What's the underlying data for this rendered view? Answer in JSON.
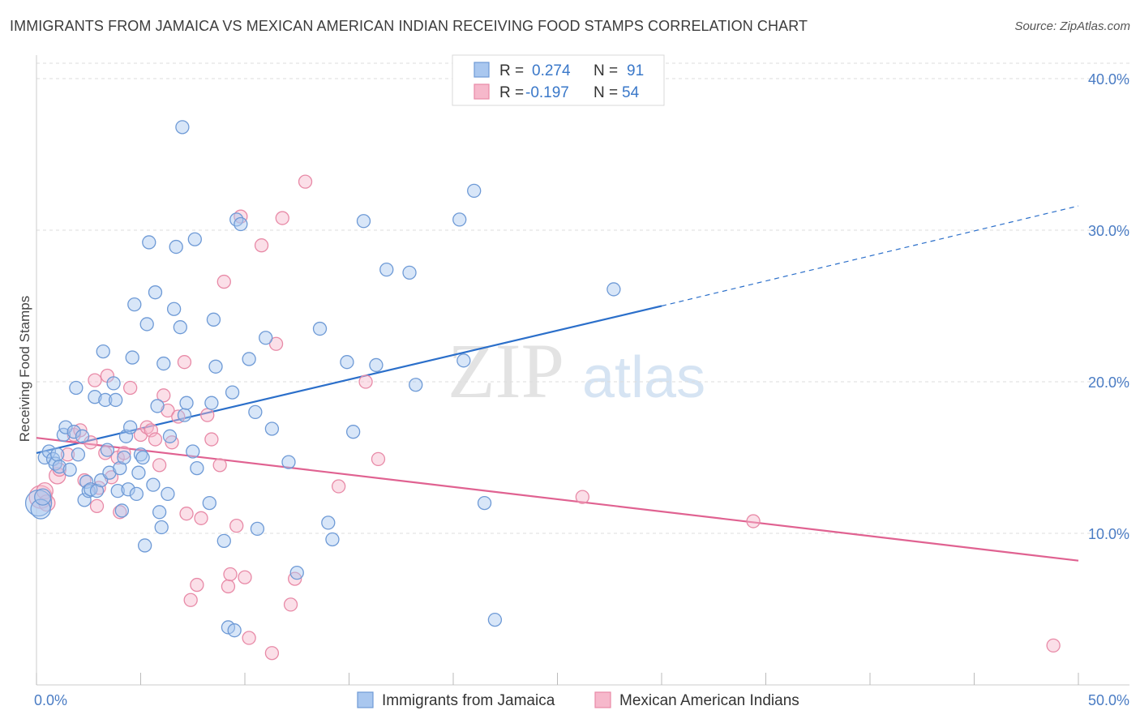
{
  "title": "IMMIGRANTS FROM JAMAICA VS MEXICAN AMERICAN INDIAN RECEIVING FOOD STAMPS CORRELATION CHART",
  "source": "Source: ZipAtlas.com",
  "watermark": {
    "zip": "ZIP",
    "atlas": "atlas"
  },
  "colors": {
    "blue_fill": "#a9c7ef",
    "blue_stroke": "#6e9ad6",
    "blue_line": "#2b6fca",
    "pink_fill": "#f6b8cb",
    "pink_stroke": "#e88aa7",
    "pink_line": "#e06291",
    "axis_label": "#4a7cc4",
    "grid": "#dddddd"
  },
  "legend": {
    "rows": [
      {
        "r_label": "R =",
        "r_value": "0.274",
        "n_label": "N =",
        "n_value": "91",
        "color": "blue"
      },
      {
        "r_label": "R =",
        "r_value": "-0.197",
        "n_label": "N =",
        "n_value": "54",
        "color": "pink"
      }
    ]
  },
  "chart_data": {
    "type": "scatter",
    "xlabel": "",
    "ylabel": "Receiving Food Stamps",
    "xlim": [
      0,
      50
    ],
    "ylim": [
      0,
      40
    ],
    "x_tick_labels": [
      {
        "value": 0,
        "label": "0.0%"
      },
      {
        "value": 50,
        "label": "50.0%"
      }
    ],
    "y_tick_labels": [
      {
        "value": 10,
        "label": "10.0%"
      },
      {
        "value": 20,
        "label": "20.0%"
      },
      {
        "value": 30,
        "label": "30.0%"
      },
      {
        "value": 40,
        "label": "40.0%"
      }
    ],
    "x_minor_ticks": [
      0,
      5,
      10,
      15,
      20,
      25,
      30,
      35,
      40,
      45,
      50
    ],
    "grid": true,
    "legend_placement": "top-center",
    "series": [
      {
        "name": "Immigrants from Jamaica",
        "color": "blue",
        "trend": {
          "x0": 0,
          "y0": 15.3,
          "x1": 30,
          "y1": 25.0,
          "dash_x1": 50,
          "dash_y1": 31.6
        },
        "points": [
          [
            0.1,
            12.0,
            16
          ],
          [
            0.2,
            11.6,
            12
          ],
          [
            0.3,
            12.4,
            10
          ],
          [
            0.4,
            15.0,
            8
          ],
          [
            0.6,
            15.4,
            8
          ],
          [
            0.8,
            14.9,
            8
          ],
          [
            0.9,
            14.6,
            8
          ],
          [
            1.0,
            15.2,
            8
          ],
          [
            1.1,
            14.4,
            8
          ],
          [
            1.3,
            16.5,
            8
          ],
          [
            1.4,
            17.0,
            8
          ],
          [
            1.6,
            14.2,
            8
          ],
          [
            1.8,
            16.7,
            8
          ],
          [
            1.9,
            19.6,
            8
          ],
          [
            2.0,
            15.2,
            8
          ],
          [
            2.2,
            16.4,
            8
          ],
          [
            2.3,
            12.2,
            8
          ],
          [
            2.4,
            13.4,
            8
          ],
          [
            2.5,
            12.8,
            8
          ],
          [
            2.6,
            12.9,
            8
          ],
          [
            2.8,
            19.0,
            8
          ],
          [
            2.9,
            12.8,
            8
          ],
          [
            3.1,
            13.5,
            8
          ],
          [
            3.2,
            22.0,
            8
          ],
          [
            3.3,
            18.8,
            8
          ],
          [
            3.4,
            15.5,
            8
          ],
          [
            3.5,
            14.0,
            8
          ],
          [
            3.7,
            19.9,
            8
          ],
          [
            3.8,
            18.8,
            8
          ],
          [
            3.9,
            12.8,
            8
          ],
          [
            4.0,
            14.3,
            8
          ],
          [
            4.1,
            11.5,
            8
          ],
          [
            4.2,
            15.0,
            8
          ],
          [
            4.3,
            16.4,
            8
          ],
          [
            4.4,
            12.9,
            8
          ],
          [
            4.5,
            17.0,
            8
          ],
          [
            4.6,
            21.6,
            8
          ],
          [
            4.7,
            25.1,
            8
          ],
          [
            4.8,
            12.6,
            8
          ],
          [
            4.9,
            14.0,
            8
          ],
          [
            5.0,
            15.2,
            8
          ],
          [
            5.1,
            15.0,
            8
          ],
          [
            5.2,
            9.2,
            8
          ],
          [
            5.3,
            23.8,
            8
          ],
          [
            5.4,
            29.2,
            8
          ],
          [
            5.6,
            13.2,
            8
          ],
          [
            5.7,
            25.9,
            8
          ],
          [
            5.8,
            18.4,
            8
          ],
          [
            5.9,
            11.4,
            8
          ],
          [
            6.0,
            10.4,
            8
          ],
          [
            6.1,
            21.2,
            8
          ],
          [
            6.3,
            12.6,
            8
          ],
          [
            6.4,
            16.4,
            8
          ],
          [
            6.6,
            24.8,
            8
          ],
          [
            6.7,
            28.9,
            8
          ],
          [
            6.9,
            23.6,
            8
          ],
          [
            7.0,
            36.8,
            8
          ],
          [
            7.1,
            17.8,
            8
          ],
          [
            7.2,
            18.6,
            8
          ],
          [
            7.5,
            15.4,
            8
          ],
          [
            7.6,
            29.4,
            8
          ],
          [
            7.7,
            14.3,
            8
          ],
          [
            8.3,
            12.0,
            8
          ],
          [
            8.4,
            18.6,
            8
          ],
          [
            8.5,
            24.1,
            8
          ],
          [
            8.6,
            21.0,
            8
          ],
          [
            9.0,
            9.5,
            8
          ],
          [
            9.2,
            3.8,
            8
          ],
          [
            9.4,
            19.3,
            8
          ],
          [
            9.5,
            3.6,
            8
          ],
          [
            9.6,
            30.7,
            8
          ],
          [
            9.8,
            30.4,
            8
          ],
          [
            10.2,
            21.5,
            8
          ],
          [
            10.5,
            18.0,
            8
          ],
          [
            10.6,
            10.3,
            8
          ],
          [
            11.0,
            22.9,
            8
          ],
          [
            11.3,
            16.9,
            8
          ],
          [
            12.1,
            14.7,
            8
          ],
          [
            12.5,
            7.4,
            8
          ],
          [
            13.6,
            23.5,
            8
          ],
          [
            14.0,
            10.7,
            8
          ],
          [
            14.2,
            9.6,
            8
          ],
          [
            14.9,
            21.3,
            8
          ],
          [
            15.2,
            16.7,
            8
          ],
          [
            15.7,
            30.6,
            8
          ],
          [
            16.3,
            21.1,
            8
          ],
          [
            16.8,
            27.4,
            8
          ],
          [
            17.9,
            27.2,
            8
          ],
          [
            18.2,
            19.8,
            8
          ],
          [
            20.3,
            30.7,
            8
          ],
          [
            20.5,
            21.4,
            8
          ],
          [
            21.0,
            32.6,
            8
          ],
          [
            21.5,
            12.0,
            8
          ],
          [
            22.0,
            4.3,
            8
          ],
          [
            27.7,
            26.1,
            8
          ]
        ]
      },
      {
        "name": "Mexican American Indians",
        "color": "pink",
        "trend": {
          "x0": 0,
          "y0": 16.3,
          "x1": 50,
          "y1": 8.2
        },
        "points": [
          [
            0.2,
            12.4,
            14
          ],
          [
            0.4,
            12.8,
            10
          ],
          [
            0.5,
            12.0,
            10
          ],
          [
            1.0,
            13.8,
            10
          ],
          [
            1.1,
            14.2,
            8
          ],
          [
            1.5,
            15.2,
            8
          ],
          [
            1.8,
            16.5,
            8
          ],
          [
            2.1,
            16.8,
            8
          ],
          [
            2.3,
            13.5,
            8
          ],
          [
            2.6,
            16.0,
            8
          ],
          [
            2.8,
            20.1,
            8
          ],
          [
            2.9,
            11.8,
            8
          ],
          [
            3.0,
            13.0,
            8
          ],
          [
            3.3,
            15.3,
            8
          ],
          [
            3.4,
            20.4,
            8
          ],
          [
            3.6,
            13.7,
            8
          ],
          [
            3.9,
            15.0,
            8
          ],
          [
            4.0,
            11.4,
            8
          ],
          [
            4.2,
            15.3,
            8
          ],
          [
            4.5,
            19.6,
            8
          ],
          [
            5.0,
            16.5,
            8
          ],
          [
            5.3,
            17.0,
            8
          ],
          [
            5.5,
            16.8,
            8
          ],
          [
            5.7,
            16.2,
            8
          ],
          [
            5.9,
            14.5,
            8
          ],
          [
            6.1,
            19.1,
            8
          ],
          [
            6.3,
            18.1,
            8
          ],
          [
            6.5,
            16.0,
            8
          ],
          [
            6.8,
            17.7,
            8
          ],
          [
            7.1,
            21.3,
            8
          ],
          [
            7.2,
            11.3,
            8
          ],
          [
            7.4,
            5.6,
            8
          ],
          [
            7.7,
            6.6,
            8
          ],
          [
            7.9,
            11.0,
            8
          ],
          [
            8.2,
            17.8,
            8
          ],
          [
            8.4,
            16.2,
            8
          ],
          [
            8.8,
            14.5,
            8
          ],
          [
            9.0,
            26.6,
            8
          ],
          [
            9.2,
            6.5,
            8
          ],
          [
            9.3,
            7.3,
            8
          ],
          [
            9.6,
            10.5,
            8
          ],
          [
            9.8,
            30.9,
            8
          ],
          [
            10.0,
            7.1,
            8
          ],
          [
            10.2,
            3.1,
            8
          ],
          [
            10.8,
            29.0,
            8
          ],
          [
            11.3,
            2.1,
            8
          ],
          [
            11.5,
            22.5,
            8
          ],
          [
            11.8,
            30.8,
            8
          ],
          [
            12.2,
            5.3,
            8
          ],
          [
            12.4,
            7.0,
            8
          ],
          [
            12.9,
            33.2,
            8
          ],
          [
            14.5,
            13.1,
            8
          ],
          [
            15.8,
            20.0,
            8
          ],
          [
            16.4,
            14.9,
            8
          ],
          [
            26.2,
            12.4,
            8
          ],
          [
            34.4,
            10.8,
            8
          ],
          [
            48.8,
            2.6,
            8
          ]
        ]
      }
    ]
  }
}
